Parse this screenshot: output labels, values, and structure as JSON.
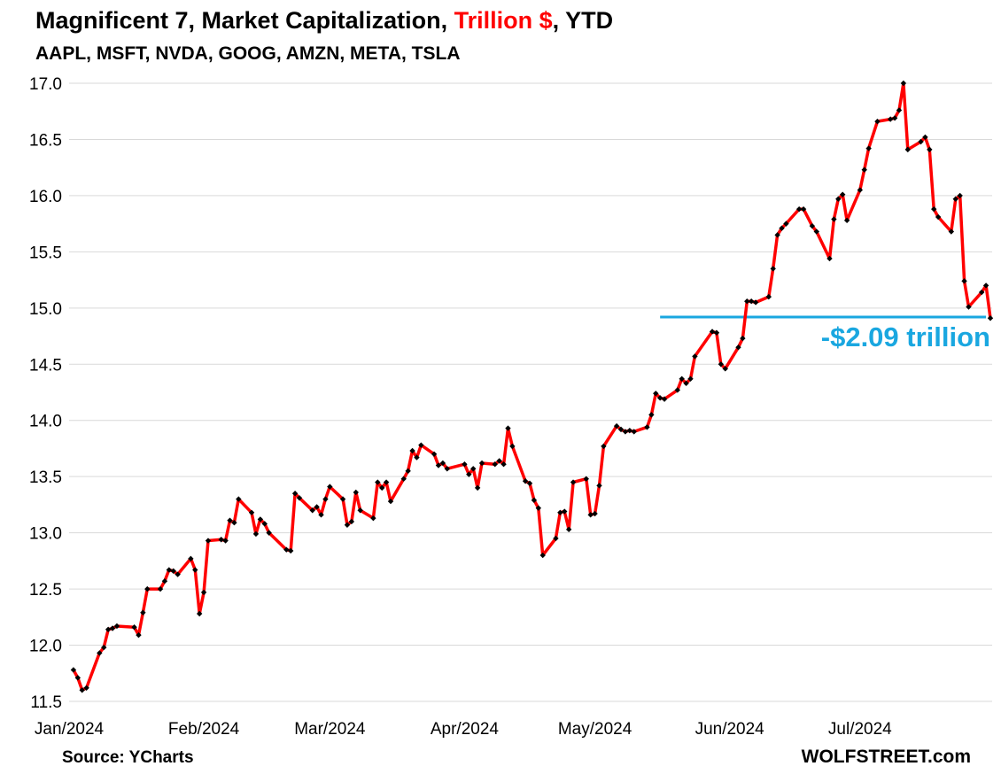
{
  "header": {
    "title_part1": "Magnificent 7, Market Capitalization, ",
    "title_highlight": "Trillion $",
    "title_part2": ", YTD",
    "subtitle": "AAPL, MSFT, NVDA, GOOG, AMZN, META, TSLA"
  },
  "footer": {
    "source": "Source: YCharts",
    "brand": "WOLFSTREET.com"
  },
  "colors": {
    "line": "#ff0000",
    "markers": "#000000",
    "annotation": "#1aa7e0",
    "grid": "#d9d9d9",
    "title_highlight": "#ff0000"
  },
  "chart_data": {
    "type": "line",
    "title": "Magnificent 7, Market Capitalization, Trillion $, YTD",
    "subtitle": "AAPL, MSFT, NVDA, GOOG, AMZN, META, TSLA",
    "xlabel": "",
    "ylabel": "",
    "ylim": [
      11.5,
      17.0
    ],
    "xlim": [
      "2024-01-02",
      "2024-07-24"
    ],
    "y_ticks": [
      "17.0",
      "16.5",
      "16.0",
      "15.5",
      "15.0",
      "14.5",
      "14.0",
      "13.5",
      "13.0",
      "12.5",
      "12.0",
      "11.5"
    ],
    "x_ticks": [
      {
        "date": "2024-01-01",
        "label": "Jan/2024"
      },
      {
        "date": "2024-02-01",
        "label": "Feb/2024"
      },
      {
        "date": "2024-03-01",
        "label": "Mar/2024"
      },
      {
        "date": "2024-04-01",
        "label": "Apr/2024"
      },
      {
        "date": "2024-05-01",
        "label": "May/2024"
      },
      {
        "date": "2024-06-01",
        "label": "Jun/2024"
      },
      {
        "date": "2024-07-01",
        "label": "Jul/2024"
      }
    ],
    "grid": true,
    "legend": "none",
    "series": [
      {
        "points": [
          [
            "2024-01-02",
            11.78
          ],
          [
            "2024-01-03",
            11.71
          ],
          [
            "2024-01-04",
            11.6
          ],
          [
            "2024-01-05",
            11.62
          ],
          [
            "2024-01-08",
            11.93
          ],
          [
            "2024-01-09",
            11.98
          ],
          [
            "2024-01-10",
            12.14
          ],
          [
            "2024-01-11",
            12.15
          ],
          [
            "2024-01-12",
            12.17
          ],
          [
            "2024-01-16",
            12.16
          ],
          [
            "2024-01-17",
            12.09
          ],
          [
            "2024-01-18",
            12.29
          ],
          [
            "2024-01-19",
            12.5
          ],
          [
            "2024-01-22",
            12.5
          ],
          [
            "2024-01-23",
            12.57
          ],
          [
            "2024-01-24",
            12.67
          ],
          [
            "2024-01-25",
            12.66
          ],
          [
            "2024-01-26",
            12.63
          ],
          [
            "2024-01-29",
            12.77
          ],
          [
            "2024-01-30",
            12.67
          ],
          [
            "2024-01-31",
            12.28
          ],
          [
            "2024-02-01",
            12.47
          ],
          [
            "2024-02-02",
            12.93
          ],
          [
            "2024-02-05",
            12.94
          ],
          [
            "2024-02-06",
            12.93
          ],
          [
            "2024-02-07",
            13.11
          ],
          [
            "2024-02-08",
            13.09
          ],
          [
            "2024-02-09",
            13.3
          ],
          [
            "2024-02-12",
            13.18
          ],
          [
            "2024-02-13",
            12.99
          ],
          [
            "2024-02-14",
            13.12
          ],
          [
            "2024-02-15",
            13.08
          ],
          [
            "2024-02-16",
            13.0
          ],
          [
            "2024-02-20",
            12.85
          ],
          [
            "2024-02-21",
            12.84
          ],
          [
            "2024-02-22",
            13.35
          ],
          [
            "2024-02-23",
            13.31
          ],
          [
            "2024-02-26",
            13.2
          ],
          [
            "2024-02-27",
            13.23
          ],
          [
            "2024-02-28",
            13.16
          ],
          [
            "2024-02-29",
            13.3
          ],
          [
            "2024-03-01",
            13.41
          ],
          [
            "2024-03-04",
            13.3
          ],
          [
            "2024-03-05",
            13.07
          ],
          [
            "2024-03-06",
            13.1
          ],
          [
            "2024-03-07",
            13.36
          ],
          [
            "2024-03-08",
            13.2
          ],
          [
            "2024-03-11",
            13.13
          ],
          [
            "2024-03-12",
            13.45
          ],
          [
            "2024-03-13",
            13.4
          ],
          [
            "2024-03-14",
            13.45
          ],
          [
            "2024-03-15",
            13.28
          ],
          [
            "2024-03-18",
            13.48
          ],
          [
            "2024-03-19",
            13.55
          ],
          [
            "2024-03-20",
            13.73
          ],
          [
            "2024-03-21",
            13.67
          ],
          [
            "2024-03-22",
            13.78
          ],
          [
            "2024-03-25",
            13.7
          ],
          [
            "2024-03-26",
            13.6
          ],
          [
            "2024-03-27",
            13.62
          ],
          [
            "2024-03-28",
            13.57
          ],
          [
            "2024-04-01",
            13.61
          ],
          [
            "2024-04-02",
            13.52
          ],
          [
            "2024-04-03",
            13.57
          ],
          [
            "2024-04-04",
            13.4
          ],
          [
            "2024-04-05",
            13.62
          ],
          [
            "2024-04-08",
            13.61
          ],
          [
            "2024-04-09",
            13.64
          ],
          [
            "2024-04-10",
            13.61
          ],
          [
            "2024-04-11",
            13.93
          ],
          [
            "2024-04-12",
            13.77
          ],
          [
            "2024-04-15",
            13.46
          ],
          [
            "2024-04-16",
            13.44
          ],
          [
            "2024-04-17",
            13.29
          ],
          [
            "2024-04-18",
            13.22
          ],
          [
            "2024-04-19",
            12.8
          ],
          [
            "2024-04-22",
            12.95
          ],
          [
            "2024-04-23",
            13.18
          ],
          [
            "2024-04-24",
            13.19
          ],
          [
            "2024-04-25",
            13.03
          ],
          [
            "2024-04-26",
            13.45
          ],
          [
            "2024-04-29",
            13.48
          ],
          [
            "2024-04-30",
            13.16
          ],
          [
            "2024-05-01",
            13.17
          ],
          [
            "2024-05-02",
            13.42
          ],
          [
            "2024-05-03",
            13.77
          ],
          [
            "2024-05-06",
            13.95
          ],
          [
            "2024-05-07",
            13.92
          ],
          [
            "2024-05-08",
            13.9
          ],
          [
            "2024-05-09",
            13.91
          ],
          [
            "2024-05-10",
            13.9
          ],
          [
            "2024-05-13",
            13.94
          ],
          [
            "2024-05-14",
            14.05
          ],
          [
            "2024-05-15",
            14.24
          ],
          [
            "2024-05-16",
            14.2
          ],
          [
            "2024-05-17",
            14.19
          ],
          [
            "2024-05-20",
            14.27
          ],
          [
            "2024-05-21",
            14.37
          ],
          [
            "2024-05-22",
            14.33
          ],
          [
            "2024-05-23",
            14.37
          ],
          [
            "2024-05-24",
            14.57
          ],
          [
            "2024-05-28",
            14.79
          ],
          [
            "2024-05-29",
            14.78
          ],
          [
            "2024-05-30",
            14.5
          ],
          [
            "2024-05-31",
            14.46
          ],
          [
            "2024-06-03",
            14.65
          ],
          [
            "2024-06-04",
            14.73
          ],
          [
            "2024-06-05",
            15.06
          ],
          [
            "2024-06-06",
            15.06
          ],
          [
            "2024-06-07",
            15.05
          ],
          [
            "2024-06-10",
            15.1
          ],
          [
            "2024-06-11",
            15.35
          ],
          [
            "2024-06-12",
            15.65
          ],
          [
            "2024-06-13",
            15.71
          ],
          [
            "2024-06-14",
            15.75
          ],
          [
            "2024-06-17",
            15.88
          ],
          [
            "2024-06-18",
            15.88
          ],
          [
            "2024-06-20",
            15.73
          ],
          [
            "2024-06-21",
            15.68
          ],
          [
            "2024-06-24",
            15.44
          ],
          [
            "2024-06-25",
            15.79
          ],
          [
            "2024-06-26",
            15.97
          ],
          [
            "2024-06-27",
            16.01
          ],
          [
            "2024-06-28",
            15.78
          ],
          [
            "2024-07-01",
            16.05
          ],
          [
            "2024-07-02",
            16.23
          ],
          [
            "2024-07-03",
            16.42
          ],
          [
            "2024-07-05",
            16.66
          ],
          [
            "2024-07-08",
            16.68
          ],
          [
            "2024-07-09",
            16.69
          ],
          [
            "2024-07-10",
            16.76
          ],
          [
            "2024-07-11",
            17.0
          ],
          [
            "2024-07-12",
            16.41
          ],
          [
            "2024-07-15",
            16.48
          ],
          [
            "2024-07-16",
            16.52
          ],
          [
            "2024-07-17",
            16.41
          ],
          [
            "2024-07-18",
            15.88
          ],
          [
            "2024-07-19",
            15.81
          ],
          [
            "2024-07-22",
            15.68
          ],
          [
            "2024-07-23",
            15.97
          ],
          [
            "2024-07-24",
            16.0
          ],
          [
            "2024-07-25",
            15.24
          ],
          [
            "2024-07-26",
            15.01
          ],
          [
            "2024-07-29",
            15.14
          ],
          [
            "2024-07-30",
            15.2
          ],
          [
            "2024-07-31",
            14.91
          ]
        ]
      }
    ],
    "annotations": [
      {
        "type": "hline",
        "y": 14.92,
        "x_start": "2024-05-16",
        "x_end": "2024-07-30",
        "label": "-$2.09 trillion"
      }
    ]
  }
}
